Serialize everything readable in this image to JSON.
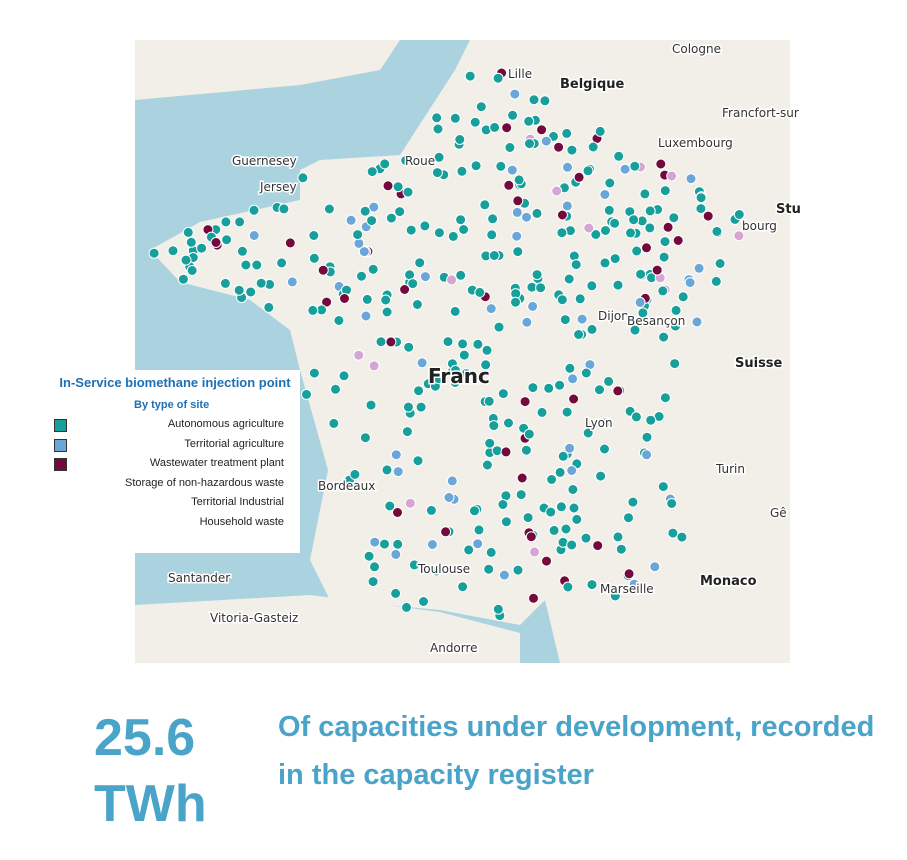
{
  "map": {
    "labels": [
      {
        "text": "Lille"
      },
      {
        "text": "Belgique"
      },
      {
        "text": "Cologne"
      },
      {
        "text": "Francfort-sur"
      },
      {
        "text": "Luxembourg"
      },
      {
        "text": "Guernesey"
      },
      {
        "text": "Jersey"
      },
      {
        "text": "Roue"
      },
      {
        "text": "Stu"
      },
      {
        "text": "bourg"
      },
      {
        "text": "Franc"
      },
      {
        "text": "Suisse"
      },
      {
        "text": "Dijon"
      },
      {
        "text": "Besançon"
      },
      {
        "text": "Lyon"
      },
      {
        "text": "Turin"
      },
      {
        "text": "Gê"
      },
      {
        "text": "Bordeaux"
      },
      {
        "text": "Toulouse"
      },
      {
        "text": "Marseille"
      },
      {
        "text": "Monaco"
      },
      {
        "text": "Santander"
      },
      {
        "text": "Vitoria-Gasteiz"
      },
      {
        "text": "Andorre"
      }
    ],
    "legend": {
      "title": "In-Service biomethane injection point",
      "subtitle": "By type of site",
      "items": [
        {
          "name": "Autonomous agriculture",
          "color": "#17a09b"
        },
        {
          "name": "Territorial agriculture",
          "color": "#6aa7d8"
        },
        {
          "name": "Wastewater treatment plant",
          "color": "#74093d"
        },
        {
          "name": "Storage of non-hazardous waste"
        },
        {
          "name": "Territorial Industrial"
        },
        {
          "name": "Household waste"
        }
      ]
    }
  },
  "stat": {
    "value": 25.6,
    "unit": "TWh",
    "caption": "Of capacities under development, recorded in the capacity register"
  }
}
